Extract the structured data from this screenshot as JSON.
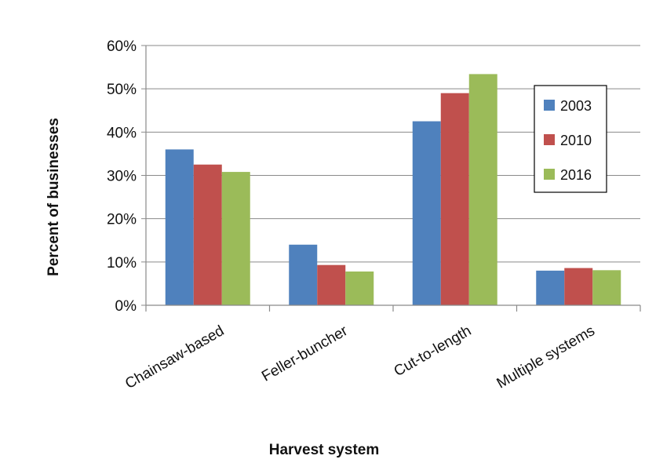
{
  "chart_data": {
    "type": "bar",
    "title": "",
    "xlabel": "Harvest system",
    "ylabel": "Percent of businesses",
    "categories": [
      "Chainsaw-based",
      "Feller-buncher",
      "Cut-to-length",
      "Multiple systems"
    ],
    "series": [
      {
        "name": "2003",
        "color": "#4f81bd",
        "values": [
          36,
          14,
          42.5,
          8
        ]
      },
      {
        "name": "2010",
        "color": "#c0504d",
        "values": [
          32.5,
          9.3,
          49,
          8.6
        ]
      },
      {
        "name": "2016",
        "color": "#9bbb59",
        "values": [
          30.8,
          7.8,
          53.4,
          8.1
        ]
      }
    ],
    "ylim": [
      0,
      60
    ],
    "yticks": [
      0,
      10,
      20,
      30,
      40,
      50,
      60
    ],
    "ytick_labels": [
      "0%",
      "10%",
      "20%",
      "30%",
      "40%",
      "50%",
      "60%"
    ],
    "grid": true,
    "legend_position": "right"
  }
}
